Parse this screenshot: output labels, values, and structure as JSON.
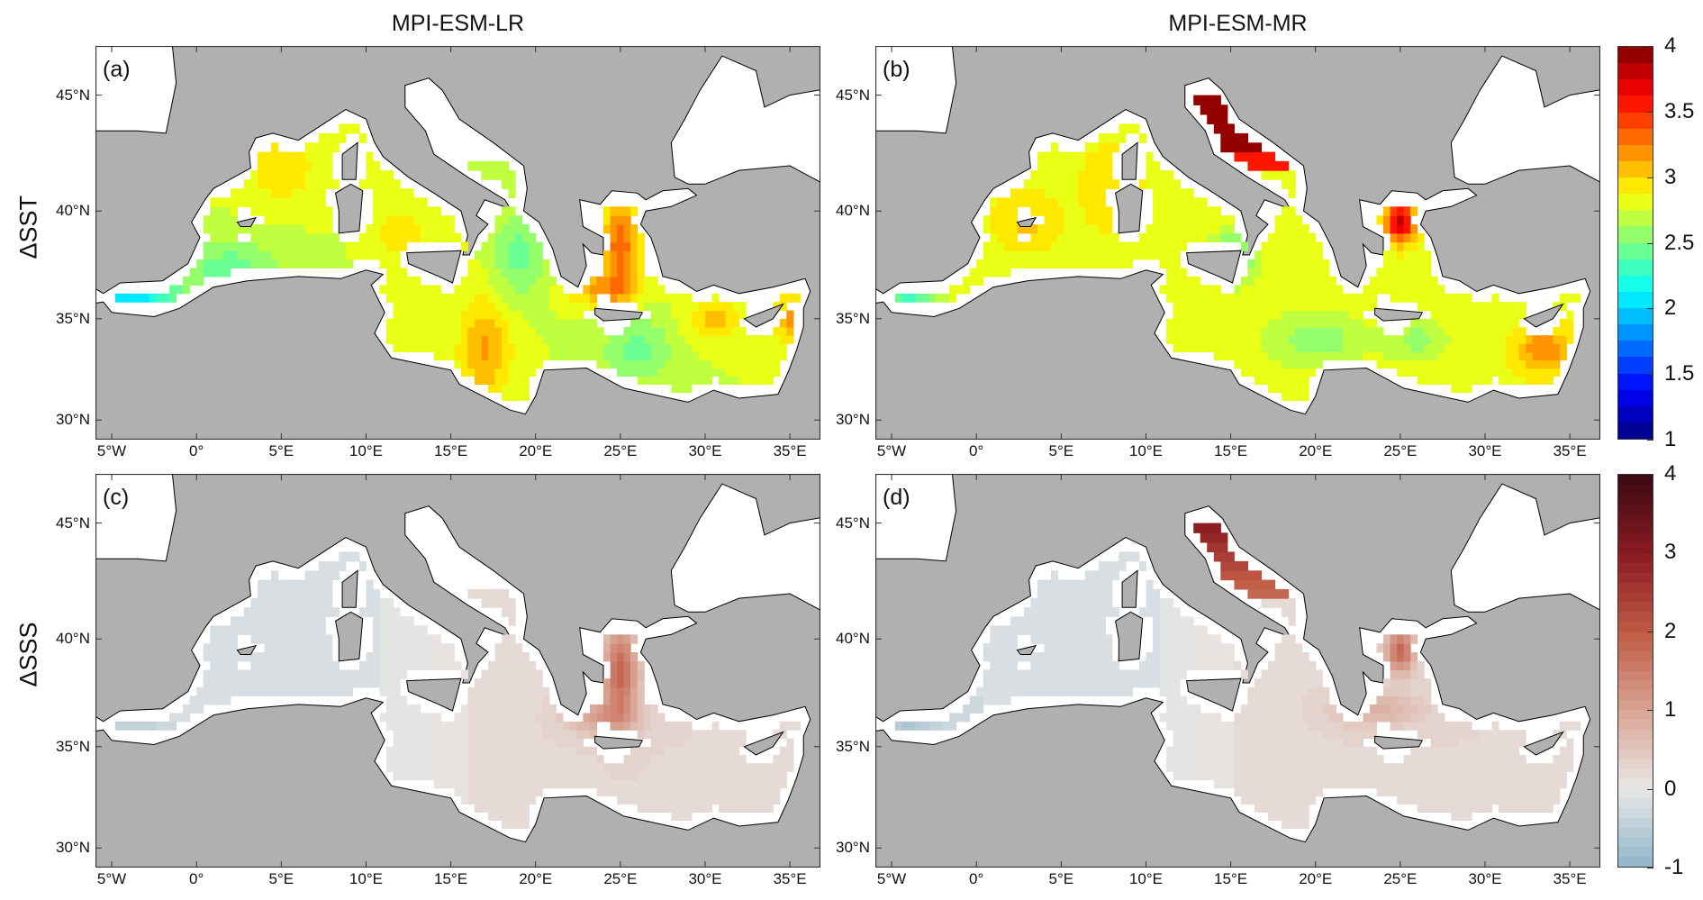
{
  "figure": {
    "column_titles": [
      "MPI-ESM-LR",
      "MPI-ESM-MR"
    ],
    "row_labels": [
      "ΔSST",
      "ΔSSS"
    ],
    "panels": [
      {
        "label": "(a)",
        "model": "MPI-ESM-LR",
        "variable": "ΔSST"
      },
      {
        "label": "(b)",
        "model": "MPI-ESM-MR",
        "variable": "ΔSST"
      },
      {
        "label": "(c)",
        "model": "MPI-ESM-LR",
        "variable": "ΔSSS"
      },
      {
        "label": "(d)",
        "model": "MPI-ESM-MR",
        "variable": "ΔSSS"
      }
    ],
    "lat_ticks": [
      {
        "label": "45°N",
        "value": 45
      },
      {
        "label": "40°N",
        "value": 40
      },
      {
        "label": "35°N",
        "value": 35
      },
      {
        "label": "30°N",
        "value": 30
      }
    ],
    "lon_ticks": [
      {
        "label": "5°W",
        "value": -5
      },
      {
        "label": "0°",
        "value": 0
      },
      {
        "label": "5°E",
        "value": 5
      },
      {
        "label": "10°E",
        "value": 10
      },
      {
        "label": "15°E",
        "value": 15
      },
      {
        "label": "20°E",
        "value": 20
      },
      {
        "label": "25°E",
        "value": 25
      },
      {
        "label": "30°E",
        "value": 30
      },
      {
        "label": "35°E",
        "value": 35
      }
    ],
    "map_extent": {
      "lon": [
        -5.96,
        36.8
      ],
      "lat": [
        29.0,
        47.0
      ],
      "projection": "mercator"
    },
    "colorbars": [
      {
        "variable": "ΔSST",
        "range": [
          1,
          4
        ],
        "colormap": "jet",
        "levels": 24,
        "ticks": [
          {
            "label": "4",
            "value": 4
          },
          {
            "label": "3.5",
            "value": 3.5
          },
          {
            "label": "3",
            "value": 3
          },
          {
            "label": "2.5",
            "value": 2.5
          },
          {
            "label": "2",
            "value": 2
          },
          {
            "label": "1.5",
            "value": 1.5
          },
          {
            "label": "1",
            "value": 1
          }
        ]
      },
      {
        "variable": "ΔSSS",
        "range": [
          -1,
          4
        ],
        "colormap": "blue-white-red",
        "levels": 40,
        "ticks": [
          {
            "label": "4",
            "value": 4
          },
          {
            "label": "3",
            "value": 3
          },
          {
            "label": "2",
            "value": 2
          },
          {
            "label": "1",
            "value": 1
          },
          {
            "label": "0",
            "value": 0
          },
          {
            "label": "-1",
            "value": -1
          }
        ]
      }
    ]
  },
  "colors": {
    "land": "#b0b0b0",
    "no_data_sea": "#ffffff",
    "coastline": "#000000",
    "sss_stops": [
      "#8fb6c9",
      "#e9e7e6",
      "#d9a493",
      "#bf5a44",
      "#8a1a22",
      "#3a0a12"
    ]
  }
}
